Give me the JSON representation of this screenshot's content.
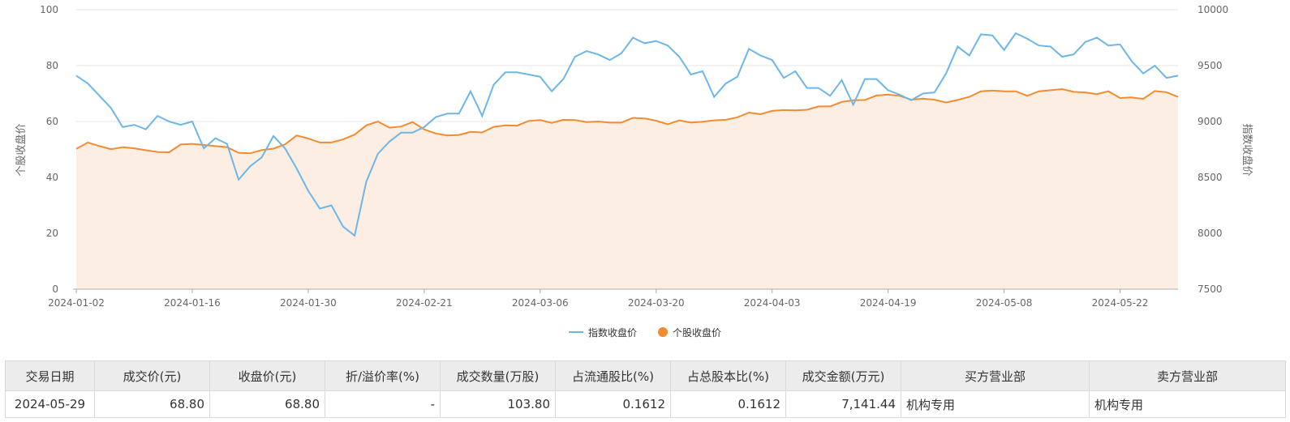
{
  "chart_data": {
    "type": "line",
    "x_ticks": [
      "2024-01-02",
      "2024-01-16",
      "2024-01-30",
      "2024-02-21",
      "2024-03-06",
      "2024-03-20",
      "2024-04-03",
      "2024-04-19",
      "2024-05-08",
      "2024-05-22"
    ],
    "y_left": {
      "label": "个股收盘价",
      "ticks": [
        0,
        20,
        40,
        60,
        80,
        100
      ],
      "lim": [
        0,
        100
      ]
    },
    "y_right": {
      "label": "指数收盘价",
      "ticks": [
        7500,
        8000,
        8500,
        9000,
        9500,
        10000
      ],
      "lim": [
        7500,
        10000
      ]
    },
    "grid": true,
    "legend_position": "bottom",
    "series": [
      {
        "name": "指数收盘价",
        "axis": "right",
        "color": "#6cb6e8",
        "style": "line",
        "values": [
          9410,
          9340,
          9230,
          9120,
          8950,
          8970,
          8930,
          9050,
          9000,
          8970,
          9000,
          8760,
          8850,
          8800,
          8480,
          8600,
          8680,
          8870,
          8760,
          8580,
          8380,
          8220,
          8250,
          8060,
          7980,
          8460,
          8710,
          8820,
          8900,
          8900,
          8950,
          9040,
          9070,
          9070,
          9270,
          9050,
          9330,
          9440,
          9440,
          9420,
          9400,
          9270,
          9380,
          9580,
          9630,
          9600,
          9550,
          9610,
          9750,
          9700,
          9720,
          9680,
          9580,
          9420,
          9450,
          9220,
          9340,
          9400,
          9650,
          9590,
          9550,
          9390,
          9450,
          9300,
          9300,
          9230,
          9370,
          9150,
          9380,
          9380,
          9280,
          9240,
          9190,
          9250,
          9260,
          9430,
          9670,
          9590,
          9780,
          9770,
          9640,
          9790,
          9740,
          9680,
          9670,
          9580,
          9600,
          9710,
          9750,
          9680,
          9690,
          9540,
          9430,
          9500,
          9390,
          9410
        ]
      },
      {
        "name": "个股收盘价",
        "axis": "left",
        "color": "#f28c30",
        "style": "area",
        "values": [
          50.2,
          52.5,
          51.2,
          50.1,
          50.8,
          50.4,
          49.7,
          49.1,
          49.0,
          51.8,
          52.0,
          51.6,
          51.2,
          50.8,
          48.8,
          48.6,
          49.8,
          50.3,
          51.8,
          55.0,
          53.9,
          52.5,
          52.5,
          53.6,
          55.3,
          58.6,
          60.0,
          57.8,
          58.2,
          59.8,
          57.2,
          55.7,
          55.0,
          55.2,
          56.3,
          56.1,
          58.1,
          58.6,
          58.5,
          60.2,
          60.5,
          59.5,
          60.6,
          60.5,
          59.8,
          60.0,
          59.6,
          59.6,
          61.3,
          61.1,
          60.3,
          59.0,
          60.4,
          59.6,
          59.9,
          60.4,
          60.6,
          61.5,
          63.2,
          62.6,
          63.8,
          64.1,
          64.0,
          64.2,
          65.4,
          65.4,
          67.0,
          67.6,
          67.7,
          69.3,
          69.6,
          69.2,
          67.8,
          68.2,
          67.8,
          66.8,
          67.7,
          68.8,
          70.8,
          71.1,
          70.8,
          70.8,
          69.2,
          70.8,
          71.2,
          71.6,
          70.6,
          70.4,
          69.8,
          70.8,
          68.4,
          68.6,
          68.1,
          70.9,
          70.5,
          68.8
        ]
      }
    ]
  },
  "table": {
    "headers": [
      "交易日期",
      "成交价(元)",
      "收盘价(元)",
      "折/溢价率(%)",
      "成交数量(万股)",
      "占流通股比(%)",
      "占总股本比(%)",
      "成交金额(万元)",
      "买方营业部",
      "卖方营业部"
    ],
    "rows": [
      [
        "2024-05-29",
        "68.80",
        "68.80",
        "-",
        "103.80",
        "0.1612",
        "0.1612",
        "7,141.44",
        "机构专用",
        "机构专用"
      ]
    ]
  }
}
